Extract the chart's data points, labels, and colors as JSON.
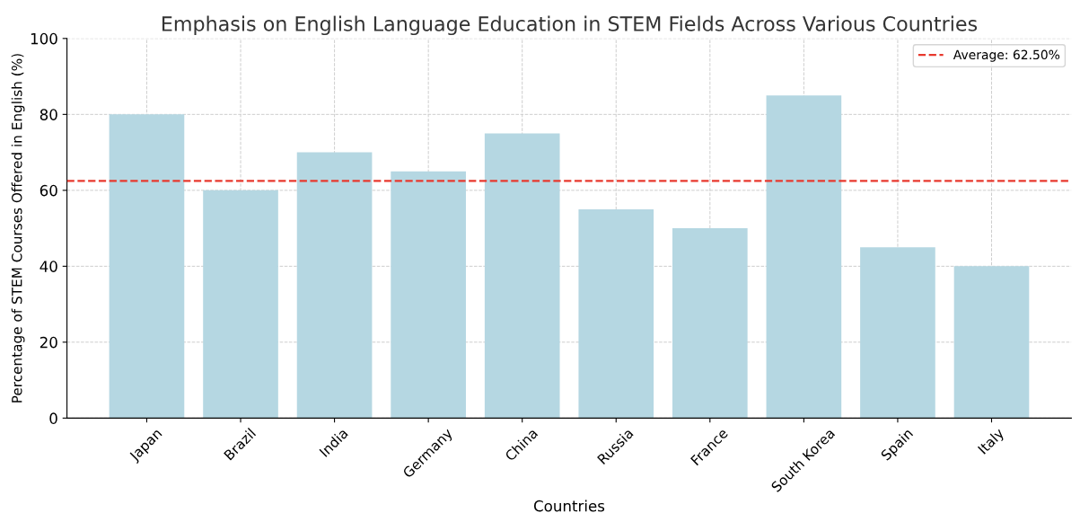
{
  "chart_data": {
    "type": "bar",
    "title": "Emphasis on English Language Education in STEM Fields Across Various Countries",
    "xlabel": "Countries",
    "ylabel": "Percentage of STEM Courses Offered in English (%)",
    "categories": [
      "Japan",
      "Brazil",
      "India",
      "Germany",
      "China",
      "Russia",
      "France",
      "South Korea",
      "Spain",
      "Italy"
    ],
    "values": [
      80,
      60,
      70,
      65,
      75,
      55,
      50,
      85,
      45,
      40
    ],
    "color": "#b5d7e2",
    "ylim": [
      0,
      100
    ],
    "yticks": [
      0,
      20,
      40,
      60,
      80,
      100
    ],
    "grid": true,
    "legend": "top right",
    "ref_lines": [
      {
        "axis": "y",
        "value": 62.5,
        "label": "Average: 62.50%",
        "color": "#e8392e",
        "line_style": "dashed"
      }
    ]
  }
}
